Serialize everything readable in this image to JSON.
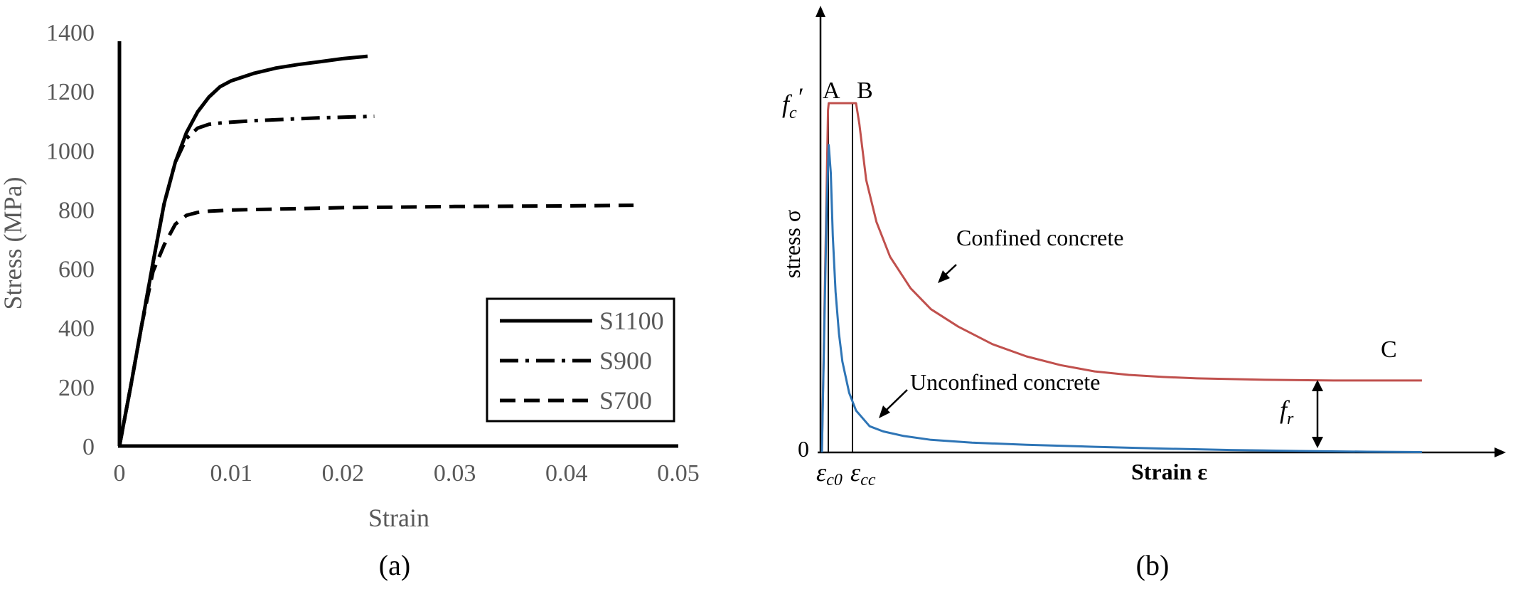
{
  "chart_data": [
    {
      "type": "line",
      "xlabel": "Strain",
      "ylabel": "Stress (MPa)",
      "caption": "(a)",
      "xlim": [
        0,
        0.05
      ],
      "ylim": [
        0,
        1400
      ],
      "x_ticks": [
        "0",
        "0.01",
        "0.02",
        "0.03",
        "0.04",
        "0.05"
      ],
      "y_ticks": [
        "0",
        "200",
        "400",
        "600",
        "800",
        "1000",
        "1200",
        "1400"
      ],
      "legend_position": "bottom-right",
      "series": [
        {
          "name": "S1100",
          "style": "solid",
          "x": [
            0,
            0.001,
            0.002,
            0.003,
            0.004,
            0.005,
            0.006,
            0.007,
            0.008,
            0.009,
            0.01,
            0.012,
            0.014,
            0.016,
            0.018,
            0.02,
            0.0222
          ],
          "y": [
            0,
            200,
            410,
            620,
            820,
            960,
            1060,
            1130,
            1180,
            1215,
            1235,
            1260,
            1278,
            1290,
            1300,
            1310,
            1318
          ]
        },
        {
          "name": "S900",
          "style": "dashdot",
          "x": [
            0,
            0.001,
            0.002,
            0.003,
            0.004,
            0.005,
            0.006,
            0.007,
            0.008,
            0.009,
            0.01,
            0.012,
            0.015,
            0.018,
            0.021,
            0.0228
          ],
          "y": [
            0,
            200,
            410,
            620,
            820,
            960,
            1040,
            1075,
            1088,
            1092,
            1095,
            1100,
            1105,
            1110,
            1113,
            1115
          ]
        },
        {
          "name": "S700",
          "style": "dashed",
          "x": [
            0,
            0.001,
            0.002,
            0.003,
            0.004,
            0.005,
            0.006,
            0.007,
            0.008,
            0.01,
            0.015,
            0.02,
            0.025,
            0.03,
            0.035,
            0.04,
            0.046
          ],
          "y": [
            0,
            200,
            410,
            590,
            680,
            750,
            780,
            790,
            794,
            798,
            802,
            806,
            808,
            810,
            811,
            812,
            814
          ]
        }
      ]
    },
    {
      "type": "line",
      "xlabel": "Strain  ε",
      "ylabel": "stress σ",
      "caption": "(b)",
      "zero_label": "0",
      "points": {
        "A": "A",
        "B": "B",
        "C": "C"
      },
      "fc_label": "f",
      "fc_sub": "c",
      "fc_prime": "′",
      "fr_label": "f",
      "fr_sub": "r",
      "eps_c0_main": "ε",
      "eps_c0_sub": "c0",
      "eps_cc_main": "ε",
      "eps_cc_sub": "cc",
      "xlim": [
        0,
        1
      ],
      "ylim": [
        0,
        1
      ],
      "colors": {
        "confined": "#c0504d",
        "unconfined": "#2e75b6"
      },
      "series": [
        {
          "name": "Confined concrete",
          "color": "#c0504d",
          "x": [
            0,
            0.009,
            0.01,
            0.05,
            0.055,
            0.065,
            0.08,
            0.1,
            0.13,
            0.16,
            0.2,
            0.25,
            0.3,
            0.35,
            0.4,
            0.45,
            0.5,
            0.55,
            0.6,
            0.65,
            0.7,
            0.75,
            0.8,
            0.85,
            0.88
          ],
          "y": [
            0,
            0.98,
            1.0,
            1.0,
            0.94,
            0.78,
            0.66,
            0.56,
            0.47,
            0.41,
            0.36,
            0.31,
            0.275,
            0.25,
            0.232,
            0.222,
            0.216,
            0.212,
            0.21,
            0.208,
            0.207,
            0.206,
            0.206,
            0.206,
            0.206
          ]
        },
        {
          "name": "Unconfined concrete",
          "color": "#2e75b6",
          "x": [
            0,
            0.004,
            0.007,
            0.01,
            0.013,
            0.016,
            0.02,
            0.025,
            0.03,
            0.04,
            0.05,
            0.07,
            0.09,
            0.12,
            0.16,
            0.22,
            0.3,
            0.4,
            0.5,
            0.6,
            0.7,
            0.8,
            0.88
          ],
          "y": [
            0,
            0.4,
            0.7,
            0.88,
            0.8,
            0.62,
            0.46,
            0.34,
            0.26,
            0.17,
            0.12,
            0.075,
            0.06,
            0.047,
            0.036,
            0.028,
            0.022,
            0.016,
            0.011,
            0.007,
            0.004,
            0.002,
            0.001
          ]
        }
      ]
    }
  ]
}
